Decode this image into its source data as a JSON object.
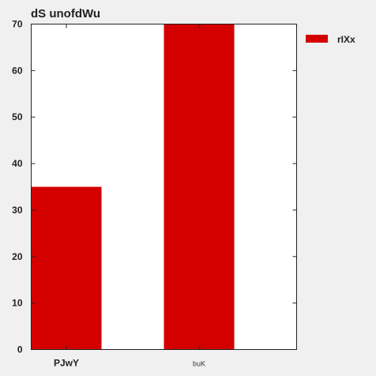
{
  "chart_data": {
    "type": "bar",
    "title": "dS unofdWu",
    "categories": [
      "PJwY",
      "buK"
    ],
    "series": [
      {
        "name": "rIXx",
        "values": [
          35,
          70
        ],
        "color": "#d40000"
      }
    ],
    "xlabel": "",
    "ylabel": "",
    "ylim": [
      0,
      70
    ],
    "yticks": [
      "0",
      "10",
      "20",
      "30",
      "40",
      "50",
      "60",
      "70"
    ],
    "grid": false,
    "legend_position": "outside-top-right"
  }
}
